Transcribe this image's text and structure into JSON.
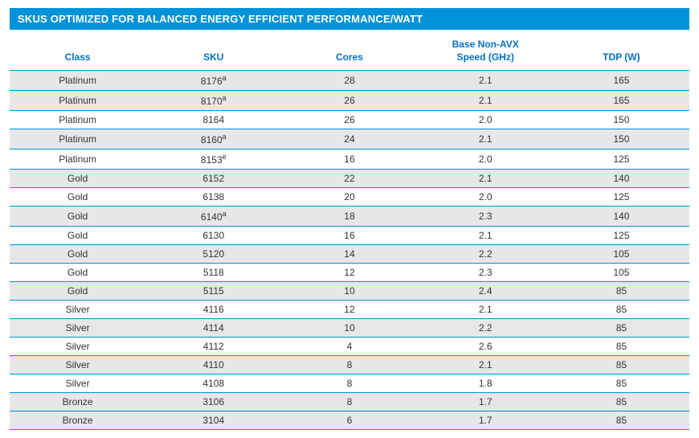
{
  "title": "SKUS OPTIMIZED FOR BALANCED ENERGY EFFICIENT PERFORMANCE/WATT",
  "colors": {
    "header_bg": "#0093d8",
    "header_text": "#ffffff",
    "th_text": "#0071c5",
    "row_alt_bg": "#e7e7e7",
    "border": "#0093d8",
    "cell_text": "#333333"
  },
  "table": {
    "columns": [
      {
        "label": "Class"
      },
      {
        "label": "SKU"
      },
      {
        "label": "Cores"
      },
      {
        "label_line1": "Base Non-AVX",
        "label_line2": "Speed (GHz)"
      },
      {
        "label": "TDP (W)"
      }
    ],
    "rows": [
      {
        "class": "Platinum",
        "sku": "8176",
        "sku_sup": "a",
        "cores": "28",
        "speed": "2.1",
        "tdp": "165",
        "alt": true
      },
      {
        "class": "Platinum",
        "sku": "8170",
        "sku_sup": "a",
        "cores": "26",
        "speed": "2.1",
        "tdp": "165",
        "alt": true
      },
      {
        "class": "Platinum",
        "sku": "8164",
        "sku_sup": "",
        "cores": "26",
        "speed": "2.0",
        "tdp": "150",
        "alt": false
      },
      {
        "class": "Platinum",
        "sku": "8160",
        "sku_sup": "a",
        "cores": "24",
        "speed": "2.1",
        "tdp": "150",
        "alt": true
      },
      {
        "class": "Platinum",
        "sku": "8153",
        "sku_sup": "e",
        "cores": "16",
        "speed": "2.0",
        "tdp": "125",
        "alt": false
      },
      {
        "class": "Gold",
        "sku": "6152",
        "sku_sup": "",
        "cores": "22",
        "speed": "2.1",
        "tdp": "140",
        "alt": true
      },
      {
        "class": "Gold",
        "sku": "6138",
        "sku_sup": "",
        "cores": "20",
        "speed": "2.0",
        "tdp": "125",
        "alt": false
      },
      {
        "class": "Gold",
        "sku": "6140",
        "sku_sup": "a",
        "cores": "18",
        "speed": "2.3",
        "tdp": "140",
        "alt": true
      },
      {
        "class": "Gold",
        "sku": "6130",
        "sku_sup": "",
        "cores": "16",
        "speed": "2.1",
        "tdp": "125",
        "alt": false
      },
      {
        "class": "Gold",
        "sku": "5120",
        "sku_sup": "",
        "cores": "14",
        "speed": "2.2",
        "tdp": "105",
        "alt": true
      },
      {
        "class": "Gold",
        "sku": "5118",
        "sku_sup": "",
        "cores": "12",
        "speed": "2.3",
        "tdp": "105",
        "alt": false
      },
      {
        "class": "Gold",
        "sku": "5115",
        "sku_sup": "",
        "cores": "10",
        "speed": "2.4",
        "tdp": "85",
        "alt": true
      },
      {
        "class": "Silver",
        "sku": "4116",
        "sku_sup": "",
        "cores": "12",
        "speed": "2.1",
        "tdp": "85",
        "alt": false
      },
      {
        "class": "Silver",
        "sku": "4114",
        "sku_sup": "",
        "cores": "10",
        "speed": "2.2",
        "tdp": "85",
        "alt": true
      },
      {
        "class": "Silver",
        "sku": "4112",
        "sku_sup": "",
        "cores": "4",
        "speed": "2.6",
        "tdp": "85",
        "alt": false
      },
      {
        "class": "Silver",
        "sku": "4110",
        "sku_sup": "",
        "cores": "8",
        "speed": "2.1",
        "tdp": "85",
        "alt": true
      },
      {
        "class": "Silver",
        "sku": "4108",
        "sku_sup": "",
        "cores": "8",
        "speed": "1.8",
        "tdp": "85",
        "alt": false
      },
      {
        "class": "Bronze",
        "sku": "3106",
        "sku_sup": "",
        "cores": "8",
        "speed": "1.7",
        "tdp": "85",
        "alt": true
      },
      {
        "class": "Bronze",
        "sku": "3104",
        "sku_sup": "",
        "cores": "6",
        "speed": "1.7",
        "tdp": "85",
        "alt": true
      }
    ]
  }
}
